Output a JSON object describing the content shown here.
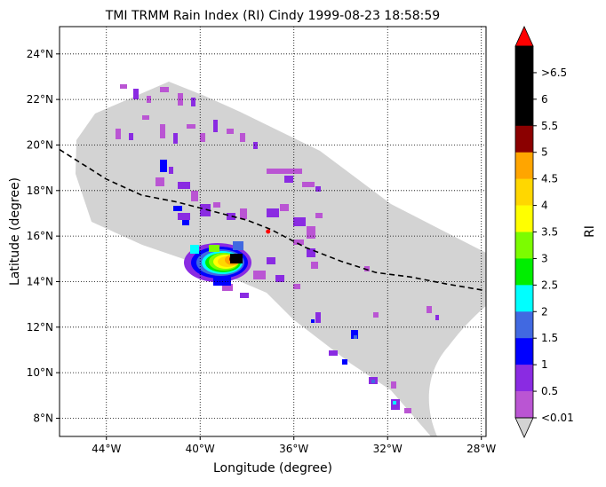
{
  "title": "TMI TRMM Rain Index (RI) Cindy 1999-08-23 18:58:59",
  "xlabel": "Longitude (degree)",
  "ylabel": "Latitude (degree)",
  "colorbar_label": "RI",
  "x_ticks": [
    {
      "value": -44,
      "label": "44°W"
    },
    {
      "value": -40,
      "label": "40°W"
    },
    {
      "value": -36,
      "label": "36°W"
    },
    {
      "value": -32,
      "label": "32°W"
    },
    {
      "value": -28,
      "label": "28°W"
    }
  ],
  "y_ticks": [
    {
      "value": 8,
      "label": "8°N"
    },
    {
      "value": 10,
      "label": "10°N"
    },
    {
      "value": 12,
      "label": "12°N"
    },
    {
      "value": 14,
      "label": "14°N"
    },
    {
      "value": 16,
      "label": "16°N"
    },
    {
      "value": 18,
      "label": "18°N"
    },
    {
      "value": 20,
      "label": "20°N"
    },
    {
      "value": 22,
      "label": "22°N"
    },
    {
      "value": 24,
      "label": "24°N"
    }
  ],
  "colorbar": {
    "colors": [
      "#ba55d3",
      "#8a2be2",
      "#0000ff",
      "#4169e1",
      "#00ffff",
      "#00ee00",
      "#7cfc00",
      "#ffff00",
      "#ffd700",
      "#ffa500",
      "#8b0000",
      "#000000",
      "#000000",
      "#000000"
    ],
    "under_color": "#d3d3d3",
    "over_color": "#ff0000",
    "tick_labels": [
      "<0.01",
      "0.5",
      "1",
      "1.5",
      "2",
      "2.5",
      "3",
      "3.5",
      "4",
      "4.5",
      "5",
      "5.5",
      "6",
      ">6.5"
    ]
  },
  "map": {
    "type": "swath-map",
    "xlim": [
      -46,
      -27.8
    ],
    "ylim": [
      7.2,
      25.2
    ],
    "grid": true,
    "swath_color": "#d3d3d3",
    "track": [
      [
        -46,
        19.8
      ],
      [
        -44,
        18.5
      ],
      [
        -42.5,
        17.8
      ],
      [
        -41,
        17.5
      ],
      [
        -39.5,
        17.1
      ],
      [
        -38,
        16.7
      ],
      [
        -37,
        16.3
      ],
      [
        -35.5,
        15.5
      ],
      [
        -34,
        14.9
      ],
      [
        -32.5,
        14.4
      ],
      [
        -31,
        14.2
      ],
      [
        -29.5,
        13.9
      ],
      [
        -27.8,
        13.6
      ]
    ],
    "storm_center": [
      -37.1,
      16.2
    ]
  }
}
